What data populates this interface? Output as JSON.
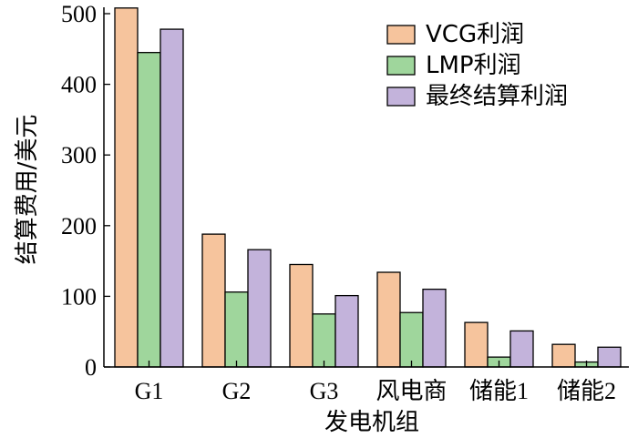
{
  "chart_data": {
    "type": "bar",
    "title": "",
    "xlabel": "发电机组",
    "ylabel": "结算费用/美元",
    "categories": [
      "G1",
      "G2",
      "G3",
      "风电商",
      "储能1",
      "储能2"
    ],
    "ylim": [
      0,
      500
    ],
    "yticks": [
      "0",
      "100",
      "200",
      "300",
      "400",
      "500"
    ],
    "grid": false,
    "legend_position": "top-right",
    "series": [
      {
        "name": "VCG利润",
        "values": [
          508,
          188,
          145,
          134,
          63,
          32
        ],
        "color": "#f6c49d"
      },
      {
        "name": "LMP利润",
        "values": [
          445,
          106,
          75,
          77,
          14,
          7
        ],
        "color": "#9fd69c"
      },
      {
        "name": "最终结算利润",
        "values": [
          478,
          166,
          101,
          110,
          51,
          28
        ],
        "color": "#c3b3db"
      }
    ]
  }
}
